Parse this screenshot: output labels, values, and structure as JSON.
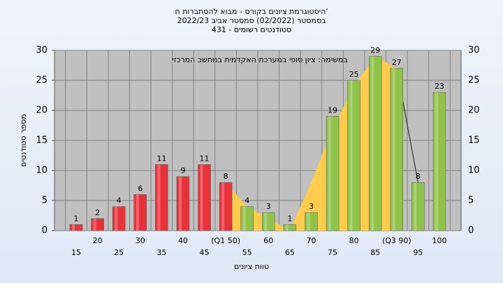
{
  "chart_data": {
    "type": "bar",
    "title": [
      "היסטוגרמת ציונים בקורס - מבוא להסתברות ח'",
      "בסמסטר (02/2022) סמסטר אביב 2022/23",
      "431 - סטודנטים רשומים"
    ],
    "annotation": "במשימה: ציון סופי במערכת האקדמית במחשב המרכזי",
    "x_label": "טווח ציונים",
    "y_label": "מספר סטודנטים",
    "categories": [
      "15",
      "20",
      "25",
      "30",
      "35",
      "40",
      "45",
      "(Q1 50)",
      "55",
      "60",
      "65",
      "70",
      "75",
      "80",
      "85",
      "(Q3 90)",
      "95",
      "100"
    ],
    "values": [
      1,
      2,
      4,
      6,
      11,
      9,
      11,
      8,
      4,
      3,
      1,
      3,
      19,
      25,
      29,
      27,
      8,
      23
    ],
    "colors": [
      "#e8323a",
      "#e8323a",
      "#e8323a",
      "#e8323a",
      "#e8323a",
      "#e8323a",
      "#e8323a",
      "#e8323a",
      "#8fc34a",
      "#8fc34a",
      "#8fc34a",
      "#8fc34a",
      "#8fc34a",
      "#8fc34a",
      "#8fc34a",
      "#8fc34a",
      "#8fc34a",
      "#8fc34a"
    ],
    "area": {
      "color": "#ffcc4d",
      "values": [
        null,
        null,
        null,
        null,
        null,
        null,
        null,
        8,
        4,
        2,
        0,
        8,
        17,
        24,
        29,
        27,
        null,
        null
      ]
    },
    "line": {
      "color": "#333333",
      "values": [
        null,
        null,
        null,
        null,
        null,
        null,
        null,
        null,
        null,
        null,
        null,
        null,
        null,
        null,
        null,
        27,
        8,
        null
      ]
    },
    "ylim": [
      0,
      30
    ],
    "yticks": [
      0,
      5,
      10,
      15,
      20,
      25,
      30
    ],
    "grid": true
  }
}
